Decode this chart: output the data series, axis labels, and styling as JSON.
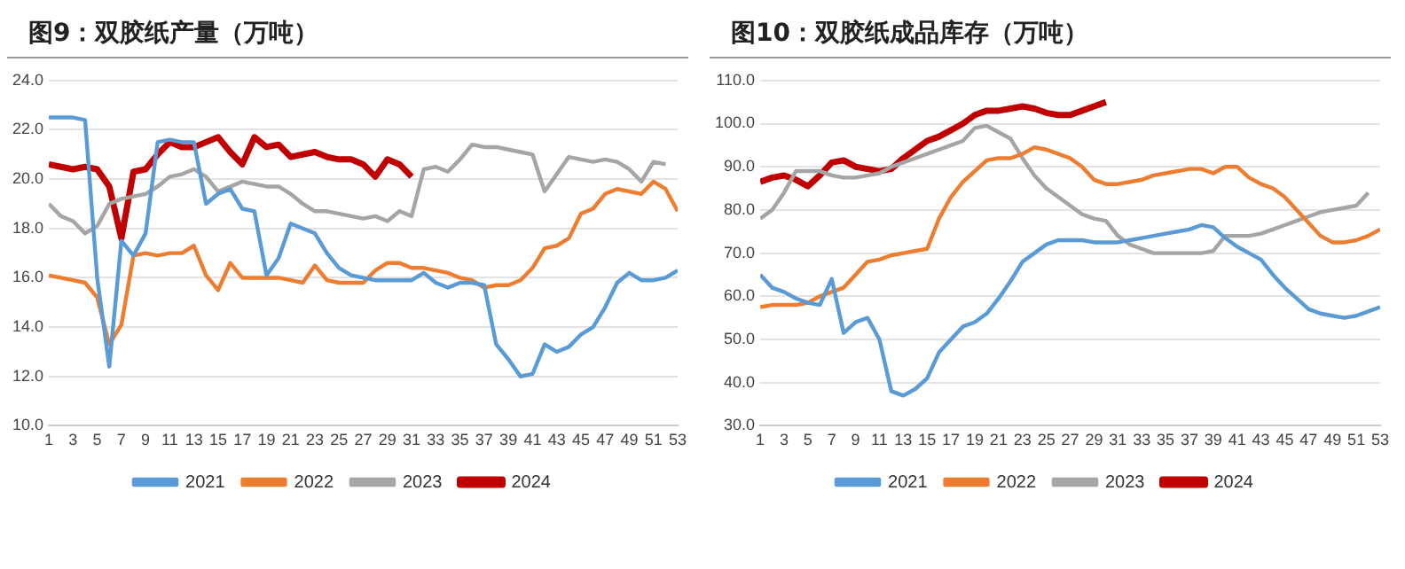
{
  "chart_data": [
    {
      "type": "line",
      "title": "图9：双胶纸产量（万吨）",
      "x": [
        1,
        2,
        3,
        4,
        5,
        6,
        7,
        8,
        9,
        10,
        11,
        12,
        13,
        14,
        15,
        16,
        17,
        18,
        19,
        20,
        21,
        22,
        23,
        24,
        25,
        26,
        27,
        28,
        29,
        30,
        31,
        32,
        33,
        34,
        35,
        36,
        37,
        38,
        39,
        40,
        41,
        42,
        43,
        44,
        45,
        46,
        47,
        48,
        49,
        50,
        51,
        52,
        53
      ],
      "xlim": [
        1,
        53
      ],
      "xticks": [
        1,
        3,
        5,
        7,
        9,
        11,
        13,
        15,
        17,
        19,
        21,
        23,
        25,
        27,
        29,
        31,
        33,
        35,
        37,
        39,
        41,
        43,
        45,
        47,
        49,
        51,
        53
      ],
      "ylim": [
        10,
        24
      ],
      "yticks": [
        {
          "value": 10,
          "label": "10.0"
        },
        {
          "value": 12,
          "label": "12.0"
        },
        {
          "value": 14,
          "label": "14.0"
        },
        {
          "value": 16,
          "label": "16.0"
        },
        {
          "value": 18,
          "label": "18.0"
        },
        {
          "value": 20,
          "label": "20.0"
        },
        {
          "value": 22,
          "label": "22.0"
        },
        {
          "value": 24,
          "label": "24.0"
        }
      ],
      "grid": "y",
      "legend": "bottom",
      "marker": "none",
      "line_style": "solid",
      "series": [
        {
          "name": "2021",
          "color": "#5b9bd5",
          "values": [
            22.5,
            22.5,
            22.5,
            22.4,
            16,
            12.4,
            17.5,
            16.9,
            17.8,
            21.5,
            21.6,
            21.5,
            21.5,
            19.0,
            19.4,
            19.6,
            18.8,
            18.7,
            16.1,
            16.8,
            18.2,
            18.0,
            17.8,
            17.0,
            16.4,
            16.1,
            16.0,
            15.9,
            15.9,
            15.9,
            15.9,
            16.2,
            15.8,
            15.6,
            15.8,
            15.8,
            15.7,
            13.3,
            12.7,
            12.0,
            12.1,
            13.3,
            13.0,
            13.2,
            13.7,
            14.0,
            14.8,
            15.8,
            16.2,
            15.9,
            15.9,
            16.0,
            16.3
          ]
        },
        {
          "name": "2022",
          "color": "#ed7d31",
          "values": [
            16.1,
            16.0,
            15.9,
            15.8,
            15.2,
            13.3,
            14.1,
            16.9,
            17.0,
            16.9,
            17.0,
            17.0,
            17.3,
            16.1,
            15.5,
            16.6,
            16.0,
            16.0,
            16.0,
            16.0,
            15.9,
            15.8,
            16.5,
            15.9,
            15.8,
            15.8,
            15.8,
            16.3,
            16.6,
            16.6,
            16.4,
            16.4,
            16.3,
            16.2,
            16.0,
            15.9,
            15.6,
            15.7,
            15.7,
            15.9,
            16.4,
            17.2,
            17.3,
            17.6,
            18.6,
            18.8,
            19.4,
            19.6,
            19.5,
            19.4,
            19.9,
            19.6,
            18.7
          ]
        },
        {
          "name": "2023",
          "color": "#a5a5a5",
          "values": [
            19.0,
            18.5,
            18.3,
            17.8,
            18.1,
            19.0,
            19.2,
            19.3,
            19.4,
            19.7,
            20.1,
            20.2,
            20.4,
            20.1,
            19.5,
            19.7,
            19.9,
            19.8,
            19.7,
            19.7,
            19.4,
            19.0,
            18.7,
            18.7,
            18.6,
            18.5,
            18.4,
            18.5,
            18.3,
            18.7,
            18.5,
            20.4,
            20.5,
            20.3,
            20.8,
            21.4,
            21.3,
            21.3,
            21.2,
            21.1,
            21.0,
            19.5,
            20.2,
            20.9,
            20.8,
            20.7,
            20.8,
            20.7,
            20.4,
            19.9,
            20.7,
            20.6,
            null
          ]
        },
        {
          "name": "2024",
          "color": "#c00000",
          "values": [
            20.6,
            20.5,
            20.4,
            20.5,
            20.4,
            19.7,
            17.6,
            20.3,
            20.4,
            21.0,
            21.5,
            21.3,
            21.3,
            21.5,
            21.7,
            21.1,
            20.6,
            21.7,
            21.3,
            21.4,
            20.9,
            21.0,
            21.1,
            20.9,
            20.8,
            20.8,
            20.6,
            20.1,
            20.8,
            20.6,
            20.1,
            null,
            null,
            null,
            null,
            null,
            null,
            null,
            null,
            null,
            null,
            null,
            null,
            null,
            null,
            null,
            null,
            null,
            null,
            null,
            null,
            null,
            null
          ]
        }
      ]
    },
    {
      "type": "line",
      "title": "图10：双胶纸成品库存（万吨）",
      "x": [
        1,
        2,
        3,
        4,
        5,
        6,
        7,
        8,
        9,
        10,
        11,
        12,
        13,
        14,
        15,
        16,
        17,
        18,
        19,
        20,
        21,
        22,
        23,
        24,
        25,
        26,
        27,
        28,
        29,
        30,
        31,
        32,
        33,
        34,
        35,
        36,
        37,
        38,
        39,
        40,
        41,
        42,
        43,
        44,
        45,
        46,
        47,
        48,
        49,
        50,
        51,
        52,
        53
      ],
      "xlim": [
        1,
        53
      ],
      "xticks": [
        1,
        3,
        5,
        7,
        9,
        11,
        13,
        15,
        17,
        19,
        21,
        23,
        25,
        27,
        29,
        31,
        33,
        35,
        37,
        39,
        41,
        43,
        45,
        47,
        49,
        51,
        53
      ],
      "ylim": [
        30,
        110
      ],
      "yticks": [
        {
          "value": 30,
          "label": "30.0"
        },
        {
          "value": 40,
          "label": "40.0"
        },
        {
          "value": 50,
          "label": "50.0"
        },
        {
          "value": 60,
          "label": "60.0"
        },
        {
          "value": 70,
          "label": "70.0"
        },
        {
          "value": 80,
          "label": "80.0"
        },
        {
          "value": 90,
          "label": "90.0"
        },
        {
          "value": 100,
          "label": "100.0"
        },
        {
          "value": 110,
          "label": "110.0"
        }
      ],
      "grid": "y",
      "legend": "bottom",
      "marker": "none",
      "line_style": "solid",
      "series": [
        {
          "name": "2021",
          "color": "#5b9bd5",
          "values": [
            65,
            62,
            61,
            59.5,
            58.5,
            58,
            64,
            51.5,
            54,
            55,
            50,
            38,
            37,
            38.5,
            41,
            47,
            50,
            53,
            54,
            56,
            59.5,
            63.5,
            68,
            70,
            72,
            73,
            73,
            73,
            72.5,
            72.5,
            72.5,
            73,
            73.5,
            74,
            74.5,
            75,
            75.5,
            76.5,
            76,
            73.5,
            71.5,
            70,
            68.5,
            65,
            62,
            59.5,
            57,
            56,
            55.5,
            55,
            55.5,
            56.5,
            57.5
          ]
        },
        {
          "name": "2022",
          "color": "#ed7d31",
          "values": [
            57.5,
            58,
            58,
            58,
            58.5,
            60,
            61,
            62,
            65,
            68,
            68.5,
            69.5,
            70,
            70.5,
            71,
            78,
            83,
            86.5,
            89,
            91.5,
            92,
            92,
            93,
            94.5,
            94,
            93,
            92,
            90,
            87,
            86,
            86,
            86.5,
            87,
            88,
            88.5,
            89,
            89.5,
            89.5,
            88.5,
            90,
            90,
            87.5,
            86,
            85,
            83,
            80,
            77,
            74,
            72.5,
            72.5,
            73,
            74,
            75.5
          ]
        },
        {
          "name": "2023",
          "color": "#a5a5a5",
          "values": [
            78,
            80,
            84,
            89,
            89,
            89,
            88,
            87.5,
            87.5,
            88,
            88.5,
            90,
            91,
            92,
            93,
            94,
            95,
            96,
            99,
            99.5,
            98,
            96.5,
            92,
            88,
            85,
            83,
            81,
            79,
            78,
            77.5,
            74,
            72,
            71,
            70,
            70,
            70,
            70,
            70,
            70.5,
            74,
            74,
            74,
            74.5,
            75.5,
            76.5,
            77.5,
            78.5,
            79.5,
            80,
            80.5,
            81,
            84,
            null
          ]
        },
        {
          "name": "2024",
          "color": "#c00000",
          "values": [
            86.5,
            87.5,
            88,
            87,
            85.5,
            88,
            91,
            91.5,
            90,
            89.5,
            89,
            89.5,
            92,
            94,
            96,
            97,
            98.5,
            100,
            102,
            103,
            103,
            103.5,
            104,
            103.5,
            102.5,
            102,
            102,
            103,
            104,
            105,
            null,
            null,
            null,
            null,
            null,
            null,
            null,
            null,
            null,
            null,
            null,
            null,
            null,
            null,
            null,
            null,
            null,
            null,
            null,
            null,
            null,
            null,
            null
          ]
        }
      ]
    }
  ]
}
